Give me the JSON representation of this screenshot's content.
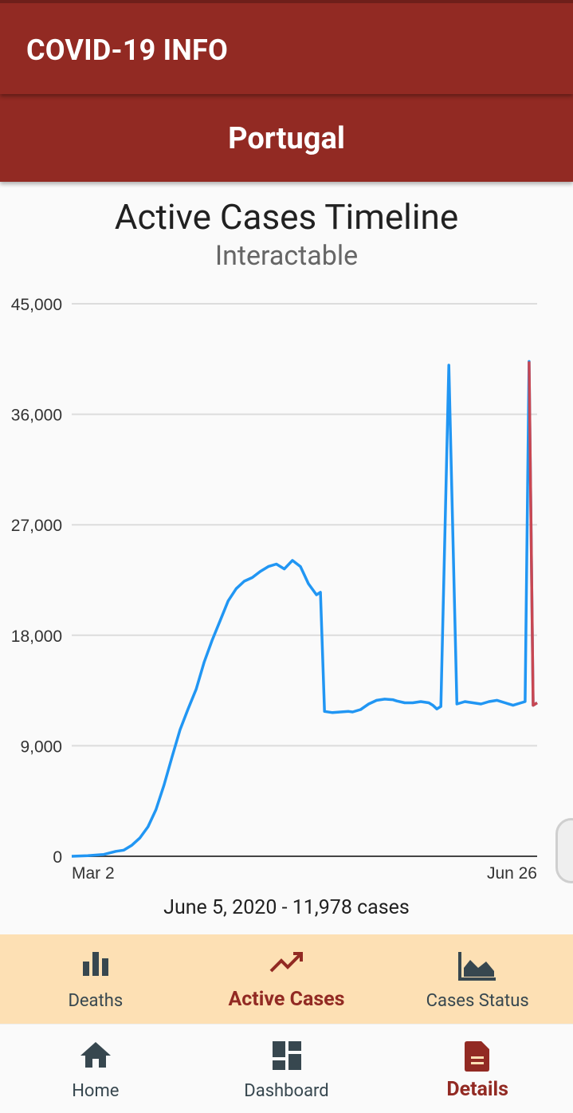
{
  "appbar": {
    "title": "COVID-19 INFO"
  },
  "country": {
    "name": "Portugal"
  },
  "chart": {
    "title": "Active Cases Timeline",
    "subtitle": "Interactable",
    "selection_label": "June 5, 2020 - 11,978 cases"
  },
  "chart_data": {
    "type": "line",
    "title": "Active Cases Timeline",
    "subtitle": "Interactable",
    "xlabel": "",
    "ylabel": "",
    "ylim": [
      0,
      45000
    ],
    "y_ticks": [
      "0",
      "9,000",
      "18,000",
      "27,000",
      "36,000",
      "45,000"
    ],
    "x_ticks": [
      "Mar 2",
      "Jun 26"
    ],
    "grid": true,
    "series": [
      {
        "color": "#2196f3",
        "x": [
          "2020-03-02",
          "2020-03-06",
          "2020-03-10",
          "2020-03-13",
          "2020-03-15",
          "2020-03-17",
          "2020-03-19",
          "2020-03-21",
          "2020-03-23",
          "2020-03-25",
          "2020-03-27",
          "2020-03-29",
          "2020-03-31",
          "2020-04-02",
          "2020-04-04",
          "2020-04-06",
          "2020-04-08",
          "2020-04-10",
          "2020-04-12",
          "2020-04-14",
          "2020-04-16",
          "2020-04-18",
          "2020-04-20",
          "2020-04-22",
          "2020-04-24",
          "2020-04-26",
          "2020-04-28",
          "2020-04-30",
          "2020-05-02",
          "2020-05-03",
          "2020-05-04",
          "2020-05-06",
          "2020-05-08",
          "2020-05-10",
          "2020-05-11",
          "2020-05-13",
          "2020-05-15",
          "2020-05-17",
          "2020-05-19",
          "2020-05-21",
          "2020-05-22",
          "2020-05-24",
          "2020-05-26",
          "2020-05-28",
          "2020-05-30",
          "2020-05-31",
          "2020-06-01",
          "2020-06-02",
          "2020-06-04",
          "2020-06-06",
          "2020-06-08",
          "2020-06-10",
          "2020-06-12",
          "2020-06-14",
          "2020-06-16",
          "2020-06-18",
          "2020-06-20",
          "2020-06-22",
          "2020-06-23",
          "2020-06-24",
          "2020-06-25",
          "2020-06-26"
        ],
        "y": [
          0,
          50,
          150,
          400,
          500,
          900,
          1500,
          2400,
          3800,
          5800,
          8100,
          10300,
          12000,
          13600,
          15800,
          17600,
          19200,
          20800,
          21800,
          22400,
          22700,
          23200,
          23600,
          23800,
          23400,
          24100,
          23600,
          22200,
          21300,
          21500,
          11800,
          11700,
          11750,
          11800,
          11750,
          11950,
          12400,
          12700,
          12800,
          12750,
          12650,
          12500,
          12500,
          12600,
          12500,
          12300,
          12000,
          12200,
          40000,
          12400,
          12600,
          12500,
          12400,
          12600,
          12700,
          12500,
          12300,
          12500,
          12600,
          40300,
          12300,
          12500
        ]
      }
    ],
    "highlight": {
      "label": "June 5, 2020 - 11,978 cases",
      "color": "#e53935"
    }
  },
  "subnav": {
    "items": [
      {
        "label": "Deaths",
        "icon": "bar-chart-icon",
        "active": false
      },
      {
        "label": "Active Cases",
        "icon": "trending-up-icon",
        "active": true
      },
      {
        "label": "Cases Status",
        "icon": "area-chart-icon",
        "active": false
      }
    ]
  },
  "bottomnav": {
    "items": [
      {
        "label": "Home",
        "icon": "home-icon",
        "active": false
      },
      {
        "label": "Dashboard",
        "icon": "dashboard-icon",
        "active": false
      },
      {
        "label": "Details",
        "icon": "document-icon",
        "active": true
      }
    ]
  },
  "colors": {
    "primary": "#922a23",
    "line": "#2196f3",
    "highlight": "#e53935",
    "subnav_bg": "#fde0b4",
    "icon": "#37474f"
  }
}
